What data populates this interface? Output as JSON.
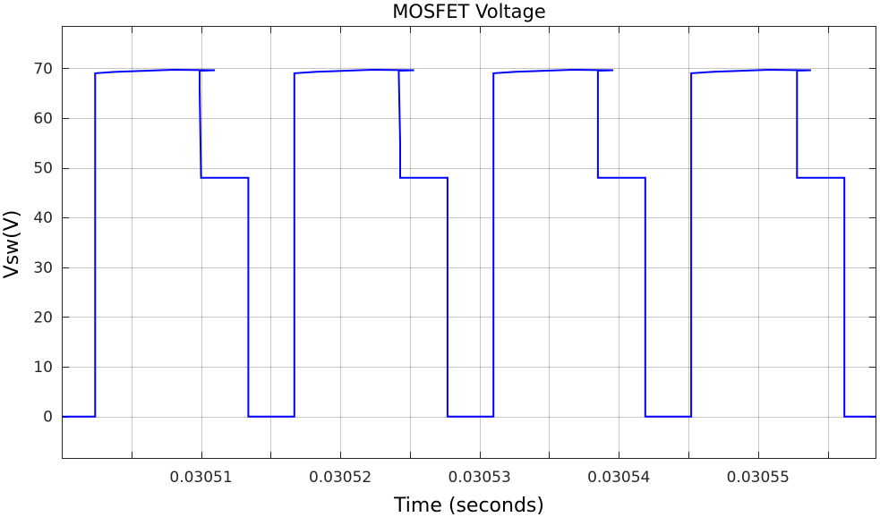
{
  "chart_data": {
    "type": "line",
    "title": "MOSFET Voltage",
    "xlabel": "Time (seconds)",
    "ylabel": "Vsw(V)",
    "xlim": [
      0.0305,
      0.0305585
    ],
    "ylim": [
      -8.5,
      78.5
    ],
    "grid": true,
    "legend": "none",
    "x_ticks": [
      0.030505,
      0.03051,
      0.030515,
      0.03052,
      0.030525,
      0.03053,
      0.030535,
      0.03054,
      0.030545,
      0.03055,
      0.030555
    ],
    "x_tick_labels": [
      "0.03051",
      "0.03052",
      "0.03053",
      "0.03054",
      "0.03055"
    ],
    "x_tick_label_values": [
      0.03051,
      0.03052,
      0.03053,
      0.03054,
      0.03055
    ],
    "y_ticks": [
      0,
      10,
      20,
      30,
      40,
      50,
      60,
      70
    ],
    "y_tick_labels": [
      "0",
      "10",
      "20",
      "30",
      "40",
      "50",
      "60",
      "70"
    ],
    "series": [
      {
        "color": "#0000ff",
        "x": [
          0.0305,
          0.0305024,
          0.0305024,
          0.030504,
          0.030508,
          0.030511,
          0.0305099,
          0.0305099,
          0.03051,
          0.03051,
          0.0305134,
          0.0305134,
          0.0305167,
          0.0305167,
          0.0305183,
          0.0305223,
          0.0305253,
          0.0305242,
          0.0305243,
          0.0305243,
          0.0305277,
          0.0305277,
          0.030531,
          0.030531,
          0.0305326,
          0.0305366,
          0.0305396,
          0.0305385,
          0.0305385,
          0.0305385,
          0.0305419,
          0.0305419,
          0.0305452,
          0.0305452,
          0.0305468,
          0.0305508,
          0.0305538,
          0.0305528,
          0.0305528,
          0.0305528,
          0.0305562,
          0.0305562,
          0.0305585
        ],
        "y": [
          0,
          0,
          69,
          69.3,
          69.7,
          69.6,
          69.5,
          66,
          48,
          48,
          48,
          0,
          0,
          69,
          69.3,
          69.7,
          69.6,
          69.5,
          55,
          48,
          48,
          0,
          0,
          69,
          69.3,
          69.7,
          69.6,
          69.5,
          48,
          48,
          48,
          0,
          0,
          69,
          69.3,
          69.7,
          69.6,
          69.5,
          55,
          48,
          48,
          0,
          0
        ]
      }
    ]
  }
}
